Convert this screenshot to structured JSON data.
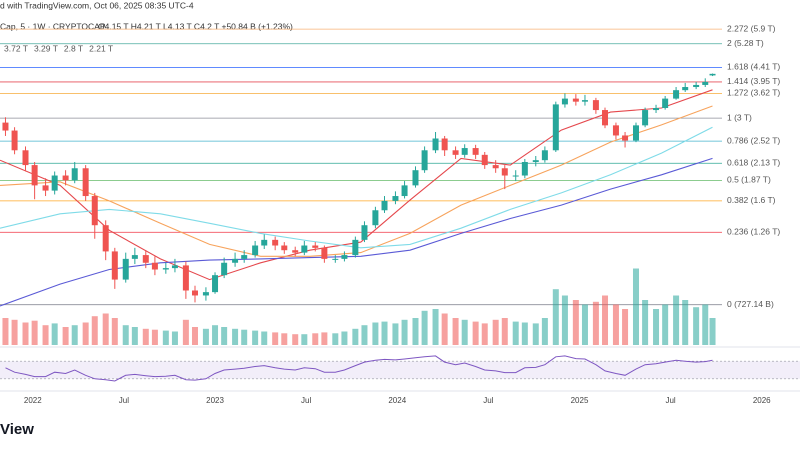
{
  "header": {
    "published": "d with TradingView.com, Oct 06, 2025 08:35 UTC-4",
    "symbol": "Cap, 5 · 1W · CRYPTOCAP",
    "ohlc": "O4.15 T H4.21 T L4.13 T C4.2 T +50.84 B (+1.23%)",
    "logo": "View"
  },
  "chart_data": {
    "type": "candlestick",
    "log_scale": true,
    "ylim": [
      0.6,
      7
    ],
    "xlim": [
      2021.82,
      2026.21
    ],
    "up_color": "#26a69a",
    "down_color": "#ef5350",
    "xticks": [
      {
        "value": 2022,
        "label": "2022"
      },
      {
        "value": 2022.5,
        "label": "Jul"
      },
      {
        "value": 2023,
        "label": "2023"
      },
      {
        "value": 2023.5,
        "label": "Jul"
      },
      {
        "value": 2024,
        "label": "2024"
      },
      {
        "value": 2024.5,
        "label": "Jul"
      },
      {
        "value": 2025,
        "label": "2025"
      },
      {
        "value": 2025.5,
        "label": "Jul"
      },
      {
        "value": 2026,
        "label": "2026"
      }
    ],
    "x": [
      2021.85,
      2021.9,
      2021.96,
      2022.01,
      2022.07,
      2022.12,
      2022.18,
      2022.23,
      2022.29,
      2022.34,
      2022.4,
      2022.45,
      2022.51,
      2022.56,
      2022.62,
      2022.67,
      2022.73,
      2022.78,
      2022.84,
      2022.89,
      2022.95,
      2023.0,
      2023.05,
      2023.11,
      2023.16,
      2023.22,
      2023.27,
      2023.33,
      2023.38,
      2023.44,
      2023.49,
      2023.55,
      2023.6,
      2023.66,
      2023.71,
      2023.77,
      2023.82,
      2023.88,
      2023.93,
      2023.99,
      2024.04,
      2024.1,
      2024.15,
      2024.21,
      2024.26,
      2024.32,
      2024.37,
      2024.43,
      2024.48,
      2024.54,
      2024.59,
      2024.65,
      2024.7,
      2024.76,
      2024.81,
      2024.87,
      2024.92,
      2024.98,
      2025.03,
      2025.09,
      2025.14,
      2025.2,
      2025.25,
      2025.31,
      2025.36,
      2025.42,
      2025.47,
      2025.53,
      2025.58,
      2025.64,
      2025.69,
      2025.73
    ],
    "open": [
      2.9,
      2.73,
      2.35,
      2.1,
      1.8,
      1.73,
      1.94,
      1.87,
      2.05,
      1.66,
      1.33,
      1.09,
      0.88,
      1.03,
      1.06,
      1.0,
      0.95,
      0.96,
      0.98,
      0.81,
      0.78,
      0.8,
      0.91,
      1.0,
      1.03,
      1.06,
      1.14,
      1.19,
      1.14,
      1.1,
      1.08,
      1.14,
      1.12,
      1.03,
      1.03,
      1.06,
      1.19,
      1.33,
      1.49,
      1.6,
      1.66,
      1.8,
      2.02,
      2.35,
      2.57,
      2.35,
      2.27,
      2.39,
      2.27,
      2.1,
      2.05,
      1.94,
      1.94,
      2.15,
      2.18,
      2.35,
      3.33,
      3.48,
      3.4,
      3.44,
      3.19,
      2.84,
      2.63,
      2.53,
      2.84,
      3.19,
      3.24,
      3.48,
      3.71,
      3.8,
      3.86,
      4.15
    ],
    "high": [
      3.02,
      2.8,
      2.42,
      2.15,
      1.9,
      2.0,
      2.02,
      2.15,
      2.1,
      1.7,
      1.38,
      1.12,
      1.08,
      1.12,
      1.1,
      1.05,
      1.0,
      1.03,
      1.01,
      0.84,
      0.83,
      0.93,
      1.04,
      1.08,
      1.1,
      1.18,
      1.24,
      1.22,
      1.17,
      1.13,
      1.18,
      1.17,
      1.14,
      1.06,
      1.09,
      1.22,
      1.37,
      1.53,
      1.66,
      1.72,
      1.86,
      2.08,
      2.42,
      2.7,
      2.62,
      2.42,
      2.46,
      2.45,
      2.32,
      2.18,
      2.1,
      2.02,
      2.2,
      2.25,
      2.42,
      3.4,
      3.62,
      3.6,
      3.58,
      3.5,
      3.25,
      2.9,
      2.7,
      2.9,
      3.25,
      3.32,
      3.55,
      3.8,
      3.92,
      3.95,
      4.06,
      4.21
    ],
    "low": [
      2.62,
      2.28,
      2.0,
      1.62,
      1.66,
      1.68,
      1.8,
      1.83,
      1.6,
      1.2,
      1.02,
      0.82,
      0.86,
      0.99,
      0.96,
      0.91,
      0.92,
      0.93,
      0.76,
      0.74,
      0.75,
      0.79,
      0.89,
      0.97,
      1.0,
      1.04,
      1.11,
      1.1,
      1.07,
      1.05,
      1.06,
      1.09,
      1.0,
      1.0,
      1.01,
      1.04,
      1.17,
      1.3,
      1.46,
      1.56,
      1.63,
      1.77,
      1.98,
      2.3,
      2.25,
      2.2,
      2.22,
      2.2,
      2.04,
      1.98,
      1.75,
      1.86,
      1.9,
      2.08,
      2.14,
      2.32,
      3.25,
      3.3,
      3.3,
      3.1,
      2.78,
      2.55,
      2.4,
      2.5,
      2.8,
      3.12,
      3.2,
      3.45,
      3.66,
      3.74,
      3.8,
      4.13
    ],
    "close": [
      2.73,
      2.35,
      2.1,
      1.8,
      1.73,
      1.94,
      1.87,
      2.05,
      1.66,
      1.33,
      1.09,
      0.88,
      1.03,
      1.06,
      1.0,
      0.95,
      0.96,
      0.98,
      0.81,
      0.78,
      0.8,
      0.91,
      1.0,
      1.03,
      1.06,
      1.14,
      1.19,
      1.14,
      1.1,
      1.08,
      1.14,
      1.12,
      1.03,
      1.03,
      1.06,
      1.19,
      1.33,
      1.49,
      1.6,
      1.66,
      1.8,
      2.02,
      2.35,
      2.57,
      2.35,
      2.27,
      2.39,
      2.27,
      2.1,
      2.05,
      1.94,
      1.94,
      2.15,
      2.18,
      2.35,
      3.33,
      3.48,
      3.4,
      3.44,
      3.19,
      2.84,
      2.63,
      2.53,
      2.84,
      3.19,
      3.24,
      3.48,
      3.71,
      3.8,
      3.86,
      3.95,
      4.2
    ],
    "fib_levels": [
      {
        "level": 2.272,
        "price": 5.9,
        "label": "2.272 (5.9 T)",
        "color": "#f7a35c"
      },
      {
        "level": 2,
        "price": 5.28,
        "label": "2 (5.28 T)",
        "color": "#2a9d8f"
      },
      {
        "level": 1.618,
        "price": 4.41,
        "label": "1.618 (4.41 T)",
        "color": "#2962ff"
      },
      {
        "level": 1.414,
        "price": 3.95,
        "label": "1.414 (3.95 T)",
        "color": "#e0303b"
      },
      {
        "level": 1.272,
        "price": 3.62,
        "label": "1.272 (3.62 T)",
        "color": "#f59c1a"
      },
      {
        "level": 1,
        "price": 3,
        "label": "1 (3 T)",
        "color": "#787b86"
      },
      {
        "level": 0.786,
        "price": 2.52,
        "label": "0.786 (2.52 T)",
        "color": "#26a6c6"
      },
      {
        "level": 0.618,
        "price": 2.13,
        "label": "0.618 (2.13 T)",
        "color": "#089981"
      },
      {
        "level": 0.5,
        "price": 1.87,
        "label": "0.5 (1.87 T)",
        "color": "#4caf50"
      },
      {
        "level": 0.382,
        "price": 1.6,
        "label": "0.382 (1.6 T)",
        "color": "#ff9800"
      },
      {
        "level": 0.236,
        "price": 1.26,
        "label": "0.236 (1.26 T)",
        "color": "#f23645"
      },
      {
        "level": 0,
        "price": 0.72714,
        "label": "0 (727.14 B)",
        "color": "#787b86"
      }
    ],
    "volume": {
      "ylim": [
        0,
        100
      ],
      "values": [
        30,
        28,
        25,
        27,
        22,
        24,
        20,
        22,
        25,
        32,
        35,
        30,
        22,
        20,
        18,
        17,
        16,
        15,
        28,
        20,
        18,
        22,
        20,
        18,
        17,
        16,
        15,
        14,
        13,
        12,
        12,
        13,
        14,
        13,
        15,
        18,
        22,
        25,
        26,
        24,
        28,
        30,
        38,
        40,
        35,
        30,
        28,
        26,
        24,
        28,
        30,
        26,
        25,
        24,
        30,
        62,
        55,
        50,
        45,
        48,
        55,
        45,
        40,
        85,
        50,
        40,
        45,
        55,
        50,
        42,
        45,
        30
      ]
    },
    "moving_averages": {
      "x": [
        2021.82,
        2022.15,
        2022.42,
        2022.7,
        2022.97,
        2023.25,
        2023.52,
        2023.8,
        2024.07,
        2024.35,
        2024.62,
        2024.9,
        2025.17,
        2025.45,
        2025.73
      ],
      "series": [
        {
          "color": "#e5484d",
          "last_label": "3.72 T",
          "values": [
            2.18,
            1.8,
            1.28,
            1.03,
            0.88,
            1.0,
            1.1,
            1.17,
            1.61,
            2.21,
            2.1,
            2.74,
            3.14,
            3.24,
            3.72
          ]
        },
        {
          "color": "#f7a35c",
          "last_label": "3.29 T",
          "values": [
            1.8,
            1.85,
            1.6,
            1.35,
            1.15,
            1.05,
            1.05,
            1.08,
            1.25,
            1.55,
            1.8,
            2.1,
            2.5,
            2.85,
            3.29
          ]
        },
        {
          "color": "#7fdbe8",
          "last_label": "2.8 T",
          "values": [
            1.3,
            1.45,
            1.5,
            1.45,
            1.35,
            1.25,
            1.18,
            1.12,
            1.15,
            1.3,
            1.5,
            1.7,
            1.95,
            2.3,
            2.8
          ]
        },
        {
          "color": "#5a5ad6",
          "last_label": "2.21 T",
          "values": [
            0.72,
            0.85,
            0.95,
            1.0,
            1.02,
            1.03,
            1.04,
            1.05,
            1.1,
            1.25,
            1.4,
            1.55,
            1.75,
            1.95,
            2.21
          ]
        }
      ]
    },
    "rsi": {
      "ylim": [
        0,
        100
      ],
      "band": [
        30,
        70
      ],
      "color": "#7e57c2",
      "values": [
        55,
        45,
        40,
        35,
        35,
        45,
        42,
        50,
        38,
        30,
        28,
        25,
        38,
        40,
        37,
        35,
        36,
        38,
        28,
        27,
        30,
        42,
        50,
        52,
        54,
        58,
        60,
        55,
        52,
        50,
        55,
        53,
        45,
        45,
        50,
        60,
        68,
        72,
        74,
        73,
        75,
        78,
        80,
        82,
        68,
        62,
        66,
        58,
        50,
        48,
        44,
        44,
        55,
        56,
        62,
        80,
        82,
        76,
        75,
        62,
        48,
        42,
        38,
        52,
        62,
        64,
        68,
        72,
        70,
        68,
        69,
        72
      ]
    }
  }
}
